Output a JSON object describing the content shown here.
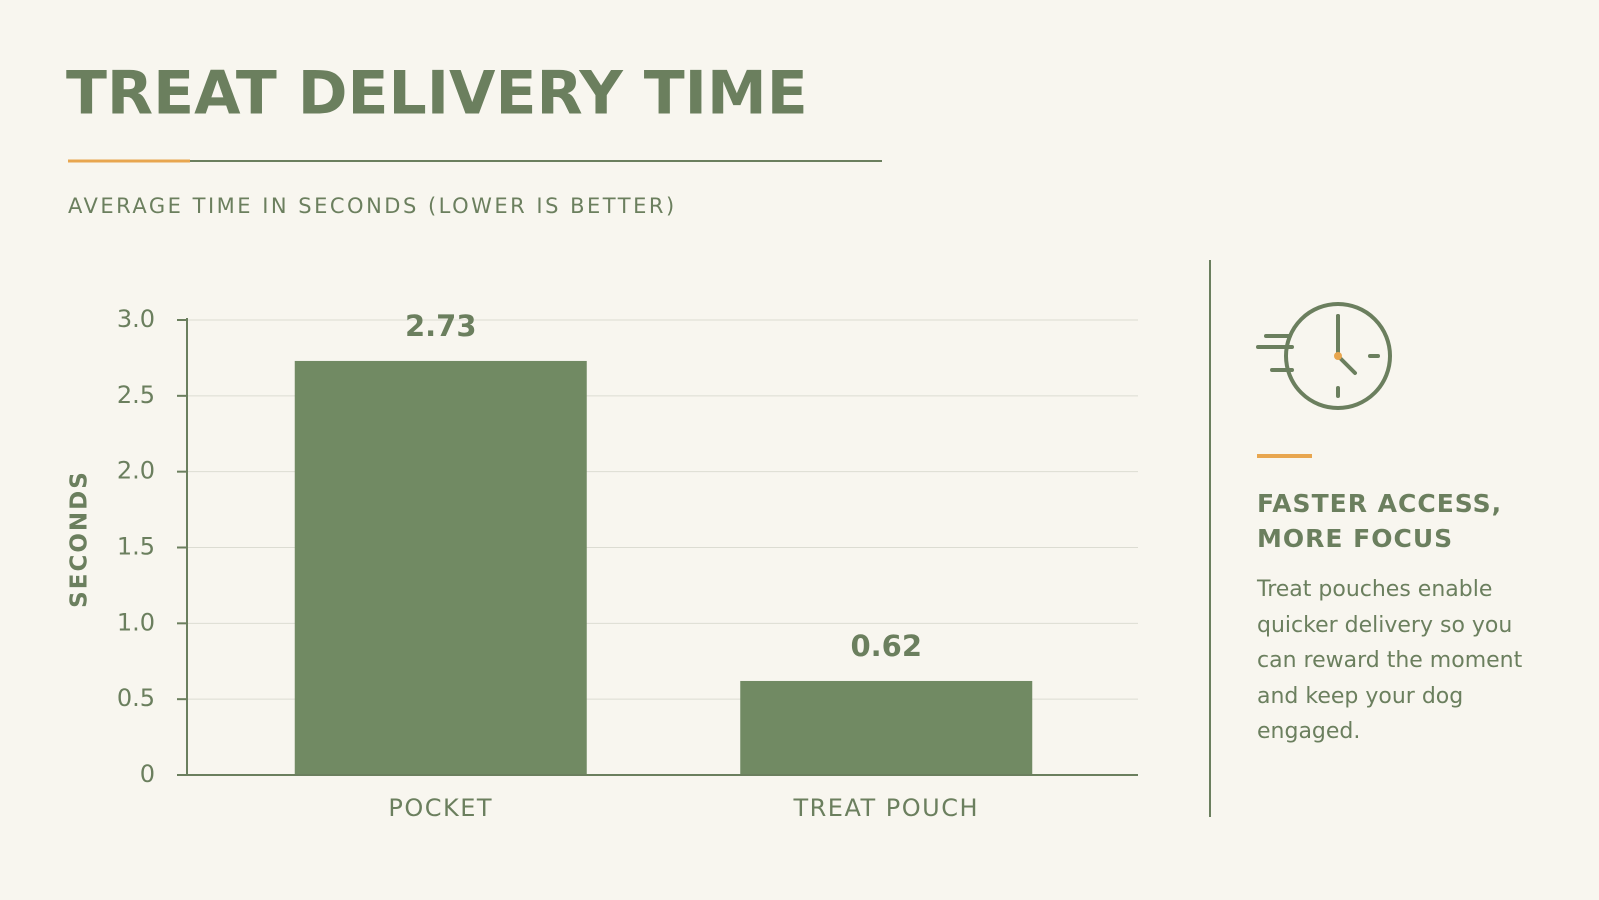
{
  "chart_data": {
    "type": "bar",
    "title": "TREAT DELIVERY TIME",
    "subtitle": "AVERAGE TIME IN SECONDS (LOWER IS BETTER)",
    "y_label": "SECONDS",
    "categories": [
      "POCKET",
      "TREAT POUCH"
    ],
    "values": [
      2.73,
      0.62
    ],
    "color": "#718a63",
    "ylim": [
      0,
      3
    ],
    "yticks": [
      0,
      0.5,
      {
        "value": 1,
        "label": "1.0"
      },
      1.5,
      {
        "value": 2,
        "label": "2.0"
      },
      2.5,
      {
        "value": 3,
        "label": "3.0"
      }
    ],
    "grid": true,
    "annotation_title": "FASTER ACCESS, MORE FOCUS",
    "annotation_text": "Treat pouches enable quicker delivery so you can reward the moment and keep your dog engaged."
  }
}
